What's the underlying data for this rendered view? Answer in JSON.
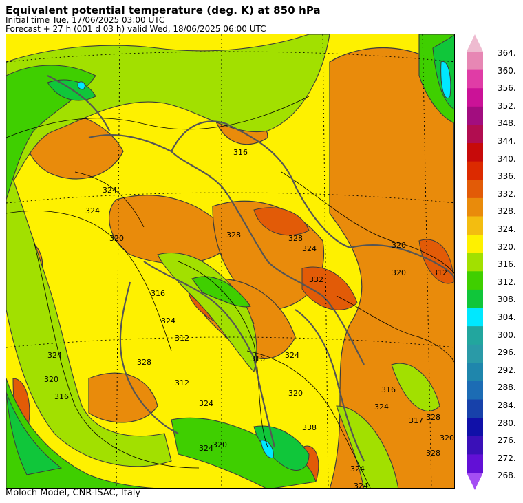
{
  "header": {
    "title": "Equivalent potential temperature (deg. K) at 850 hPa",
    "initial_time": "Initial time  Tue, 17/06/2025  03:00 UTC",
    "forecast": "Forecast  +  27 h  (001 d 03 h)  valid Wed, 18/06/2025 06:00 UTC"
  },
  "footer": "Moloch Model, CNR-ISAC, Italy",
  "colorbar": {
    "labels": [
      "364.",
      "360.",
      "356.",
      "352.",
      "348.",
      "344.",
      "340.",
      "336.",
      "332.",
      "328.",
      "324.",
      "320.",
      "316.",
      "312.",
      "308.",
      "304.",
      "300.",
      "296.",
      "292.",
      "288.",
      "284.",
      "280.",
      "276.",
      "272.",
      "268."
    ],
    "colors": [
      "#eebbd0",
      "#e787b4",
      "#e03ca6",
      "#cb1297",
      "#a20d7f",
      "#b10d50",
      "#c70a0a",
      "#dc2a00",
      "#e25b07",
      "#e98b0b",
      "#f3bd10",
      "#fef100",
      "#a2e000",
      "#3fcf00",
      "#10c63a",
      "#00e8ff",
      "#22a69e",
      "#2a9aa7",
      "#1f86ac",
      "#1c6cb4",
      "#1741aa",
      "#1010a8",
      "#3a10b8",
      "#6210d6",
      "#a44ef3"
    ]
  },
  "map": {
    "contour_labels": [
      "320",
      "316",
      "324",
      "320",
      "324",
      "328",
      "316",
      "328",
      "320",
      "324",
      "316",
      "316",
      "324",
      "320",
      "324",
      "324",
      "312",
      "324",
      "317",
      "328",
      "320",
      "338",
      "324",
      "324",
      "320",
      "312",
      "320",
      "316",
      "312",
      "328",
      "324",
      "328",
      "332",
      "324"
    ]
  }
}
